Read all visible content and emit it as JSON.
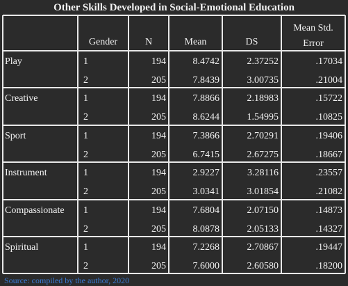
{
  "title": "Other Skills Developed in Social-Emotional Education",
  "table": {
    "columns": [
      "Gender",
      "N",
      "Mean",
      "DS",
      "Mean Std. Error"
    ],
    "groups": [
      {
        "label": "Play",
        "rows": [
          [
            "1",
            "194",
            "8.4742",
            "2.37252",
            ".17034"
          ],
          [
            "2",
            "205",
            "7.8439",
            "3.00735",
            ".21004"
          ]
        ]
      },
      {
        "label": "Creative",
        "rows": [
          [
            "1",
            "194",
            "7.8866",
            "2.18983",
            ".15722"
          ],
          [
            "2",
            "205",
            "8.6244",
            "1.54995",
            ".10825"
          ]
        ]
      },
      {
        "label": "Sport",
        "rows": [
          [
            "1",
            "194",
            "7.3866",
            "2.70291",
            ".19406"
          ],
          [
            "2",
            "205",
            "6.7415",
            "2.67275",
            ".18667"
          ]
        ]
      },
      {
        "label": "Instrument",
        "rows": [
          [
            "1",
            "194",
            "2.9227",
            "3.28116",
            ".23557"
          ],
          [
            "2",
            "205",
            "3.0341",
            "3.01854",
            ".21082"
          ]
        ]
      },
      {
        "label": "Compassionate",
        "rows": [
          [
            "1",
            "194",
            "7.6804",
            "2.07150",
            ".14873"
          ],
          [
            "2",
            "205",
            "8.0878",
            "2.05133",
            ".14327"
          ]
        ]
      },
      {
        "label": "Spiritual",
        "rows": [
          [
            "1",
            "194",
            "7.2268",
            "2.70867",
            ".19447"
          ],
          [
            "2",
            "205",
            "7.6000",
            "2.60580",
            ".18200"
          ]
        ]
      }
    ]
  },
  "source": "Source: compiled by the author, 2020"
}
